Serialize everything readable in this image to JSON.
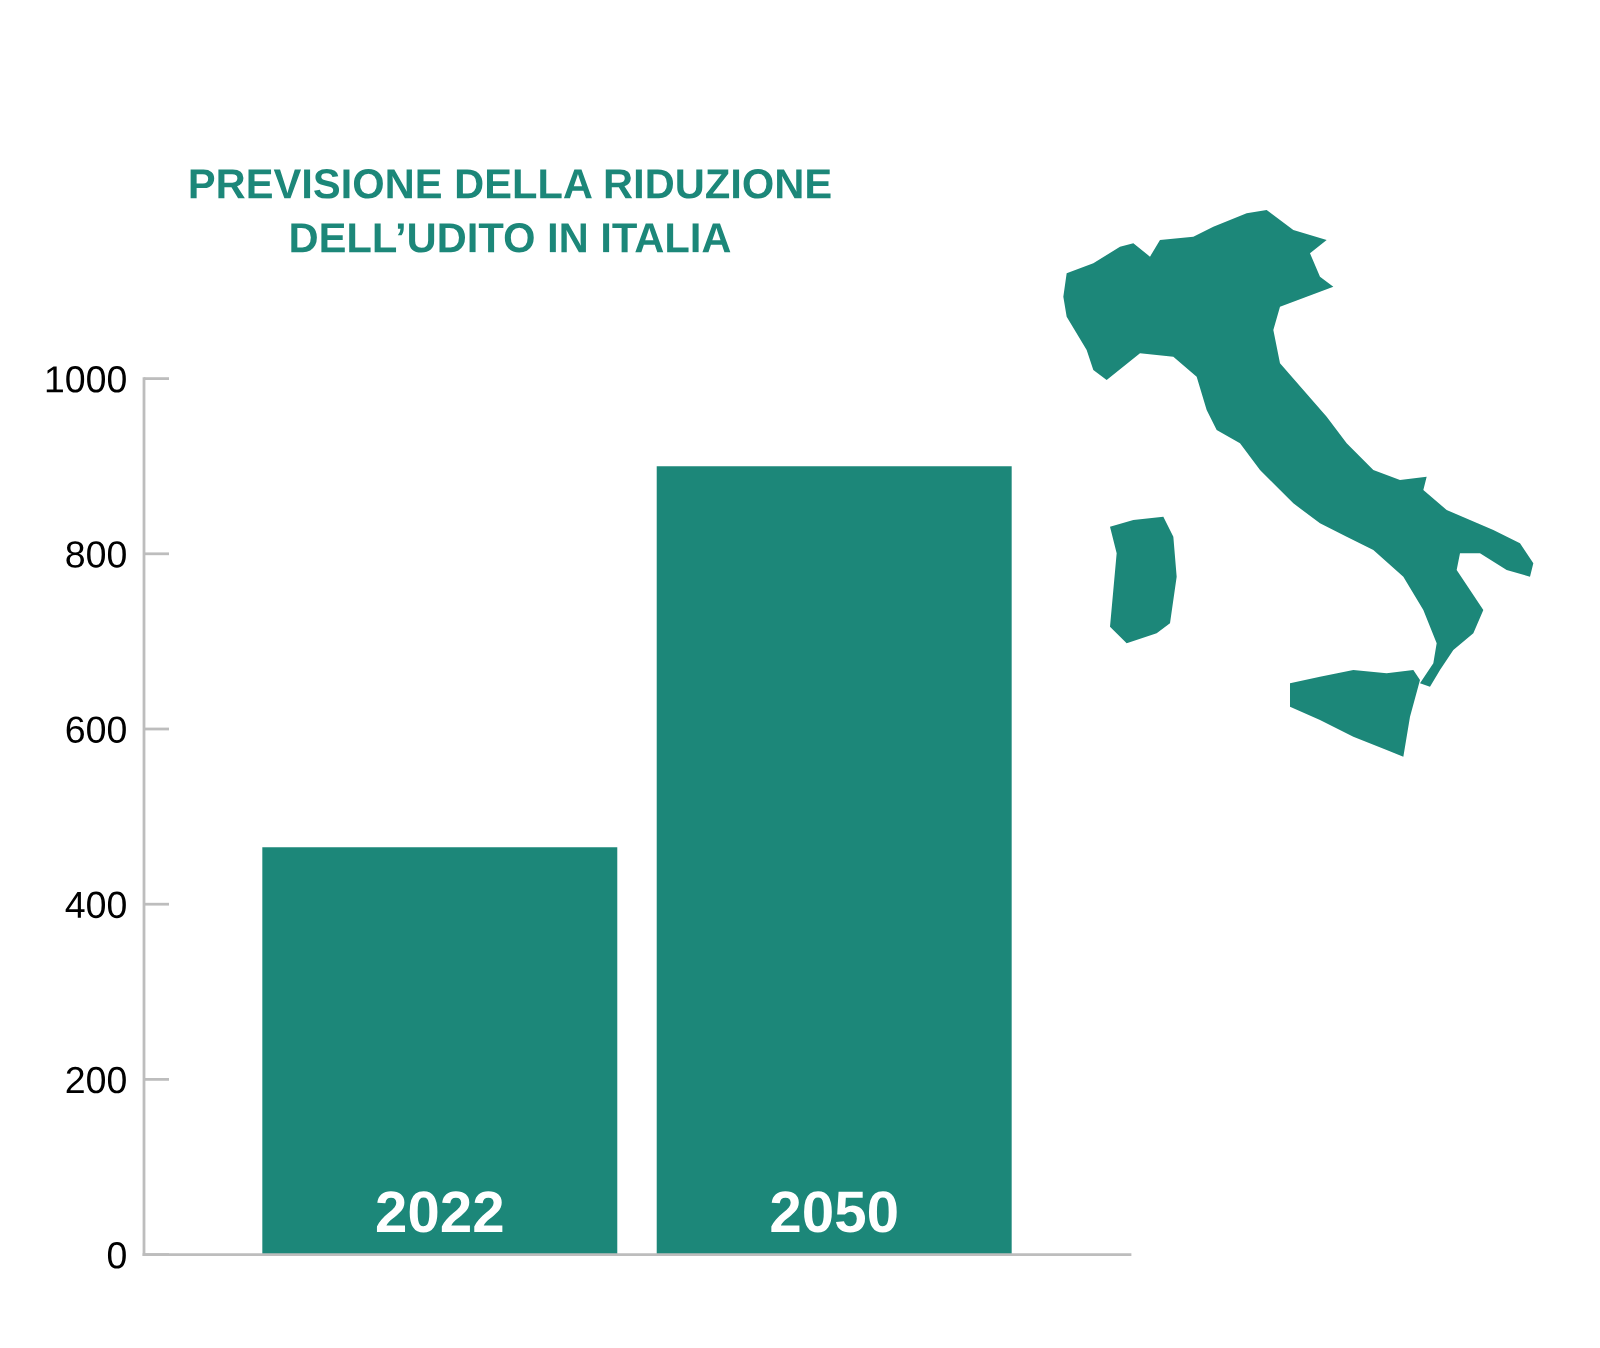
{
  "chart_data": {
    "type": "bar",
    "title": "PREVISIONE DELLA RIDUZIONE\nDELL’UDITO IN ITALIA",
    "categories": [
      "2022",
      "2050"
    ],
    "values": [
      465,
      900
    ],
    "color": "#1c8779",
    "ylim": [
      0,
      1000
    ],
    "yticks": [
      0,
      200,
      400,
      600,
      800,
      1000
    ]
  }
}
